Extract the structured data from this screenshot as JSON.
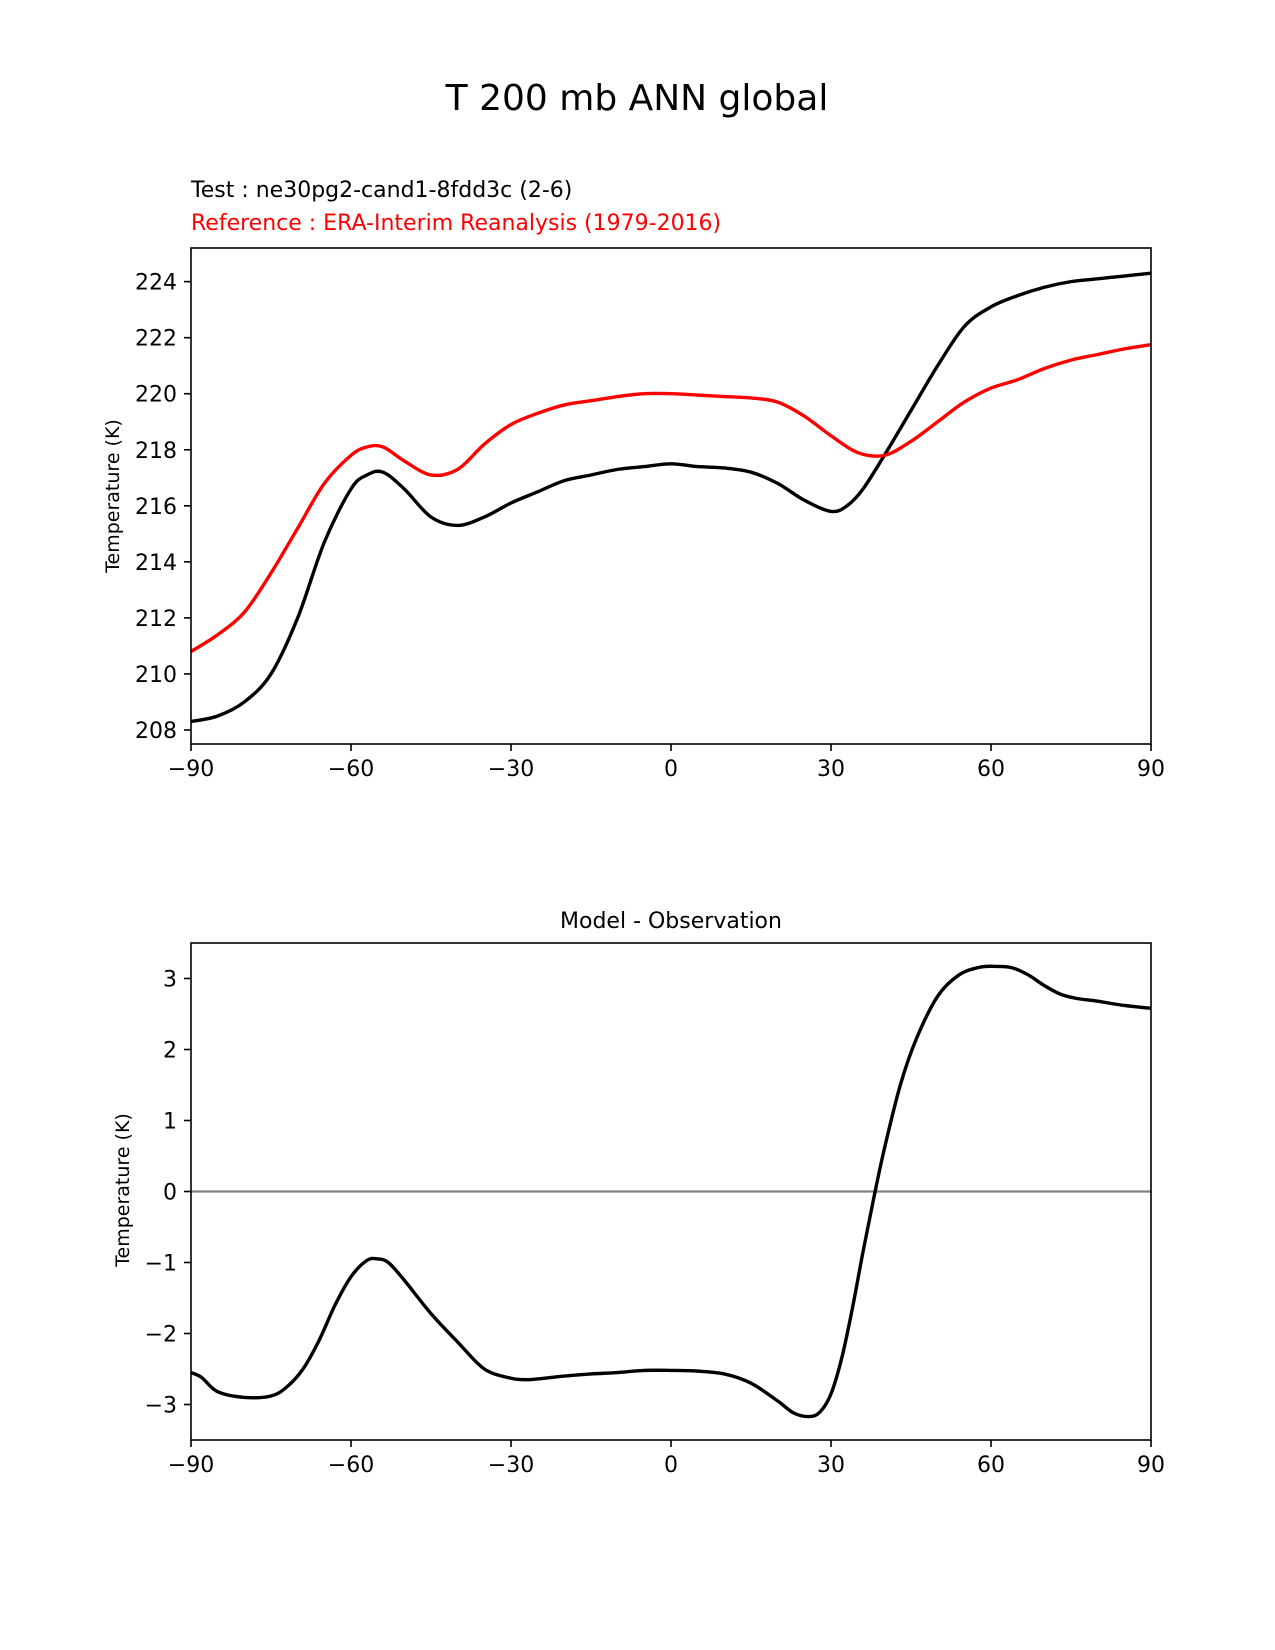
{
  "figure": {
    "suptitle": "T 200 mb ANN global"
  },
  "chart_data": [
    {
      "type": "line",
      "test_label": "Test : ne30pg2-cand1-8fdd3c (2-6)",
      "reference_label": "Reference : ERA-Interim Reanalysis (1979-2016)",
      "xlabel": "",
      "ylabel": "Temperature (K)",
      "xlim": [
        -90,
        90
      ],
      "ylim": [
        207.5,
        225.2
      ],
      "xticks": [
        -90,
        -60,
        -30,
        0,
        30,
        60,
        90
      ],
      "xtick_labels": [
        "−90",
        "−60",
        "−30",
        "0",
        "30",
        "60",
        "90"
      ],
      "yticks": [
        208,
        210,
        212,
        214,
        216,
        218,
        220,
        222,
        224
      ],
      "ytick_labels": [
        "208",
        "210",
        "212",
        "214",
        "216",
        "218",
        "220",
        "222",
        "224"
      ],
      "series": [
        {
          "name": "Test",
          "color": "#000000",
          "x": [
            -90,
            -85,
            -80,
            -75,
            -70,
            -65,
            -60,
            -57,
            -54,
            -50,
            -45,
            -40,
            -35,
            -30,
            -25,
            -20,
            -15,
            -10,
            -5,
            0,
            5,
            10,
            15,
            20,
            25,
            30,
            33,
            36,
            40,
            45,
            50,
            55,
            60,
            65,
            70,
            75,
            80,
            85,
            90
          ],
          "y": [
            208.3,
            208.5,
            209.0,
            210.0,
            212.0,
            214.7,
            216.6,
            217.1,
            217.2,
            216.6,
            215.6,
            215.3,
            215.6,
            216.1,
            216.5,
            216.9,
            217.1,
            217.3,
            217.4,
            217.5,
            217.4,
            217.35,
            217.2,
            216.8,
            216.2,
            215.8,
            216.0,
            216.6,
            217.8,
            219.4,
            221.0,
            222.4,
            223.1,
            223.5,
            223.8,
            224.0,
            224.1,
            224.2,
            224.3
          ]
        },
        {
          "name": "Reference",
          "color": "#ff0000",
          "x": [
            -90,
            -85,
            -80,
            -75,
            -70,
            -65,
            -60,
            -57,
            -54,
            -50,
            -45,
            -40,
            -35,
            -30,
            -25,
            -20,
            -15,
            -10,
            -5,
            0,
            5,
            10,
            15,
            20,
            25,
            30,
            35,
            40,
            45,
            50,
            55,
            60,
            65,
            70,
            75,
            80,
            85,
            90
          ],
          "y": [
            210.8,
            211.4,
            212.2,
            213.6,
            215.2,
            216.8,
            217.8,
            218.1,
            218.1,
            217.6,
            217.1,
            217.3,
            218.2,
            218.9,
            219.3,
            219.6,
            219.75,
            219.9,
            220.0,
            220.0,
            219.95,
            219.9,
            219.85,
            219.7,
            219.2,
            218.5,
            217.9,
            217.8,
            218.3,
            219.0,
            219.7,
            220.2,
            220.5,
            220.9,
            221.2,
            221.4,
            221.6,
            221.75
          ]
        }
      ]
    },
    {
      "type": "line",
      "title": "Model - Observation",
      "xlabel": "",
      "ylabel": "Temperature (K)",
      "xlim": [
        -90,
        90
      ],
      "ylim": [
        -3.5,
        3.5
      ],
      "xticks": [
        -90,
        -60,
        -30,
        0,
        30,
        60,
        90
      ],
      "xtick_labels": [
        "−90",
        "−60",
        "−30",
        "0",
        "30",
        "60",
        "90"
      ],
      "yticks": [
        -3,
        -2,
        -1,
        0,
        1,
        2,
        3
      ],
      "ytick_labels": [
        "−3",
        "−2",
        "−1",
        "0",
        "1",
        "2",
        "3"
      ],
      "zero_line_color": "#808080",
      "series": [
        {
          "name": "Model - Observation",
          "color": "#000000",
          "x": [
            -90,
            -88,
            -85,
            -80,
            -75,
            -72,
            -69,
            -66,
            -63,
            -60,
            -57,
            -55,
            -53,
            -50,
            -45,
            -40,
            -35,
            -30,
            -27,
            -25,
            -20,
            -15,
            -10,
            -5,
            0,
            5,
            10,
            15,
            20,
            23,
            26,
            28,
            30,
            32,
            34,
            36,
            38,
            40,
            43,
            46,
            50,
            54,
            58,
            61,
            64,
            67,
            70,
            73,
            76,
            80,
            85,
            90
          ],
          "y": [
            -2.55,
            -2.62,
            -2.82,
            -2.9,
            -2.88,
            -2.75,
            -2.5,
            -2.1,
            -1.6,
            -1.2,
            -0.97,
            -0.95,
            -1.0,
            -1.25,
            -1.72,
            -2.12,
            -2.5,
            -2.63,
            -2.65,
            -2.64,
            -2.6,
            -2.57,
            -2.55,
            -2.52,
            -2.52,
            -2.53,
            -2.57,
            -2.7,
            -2.95,
            -3.12,
            -3.17,
            -3.1,
            -2.85,
            -2.35,
            -1.65,
            -0.85,
            -0.1,
            0.6,
            1.5,
            2.15,
            2.75,
            3.05,
            3.16,
            3.17,
            3.15,
            3.05,
            2.9,
            2.78,
            2.72,
            2.68,
            2.62,
            2.58
          ]
        }
      ]
    }
  ]
}
